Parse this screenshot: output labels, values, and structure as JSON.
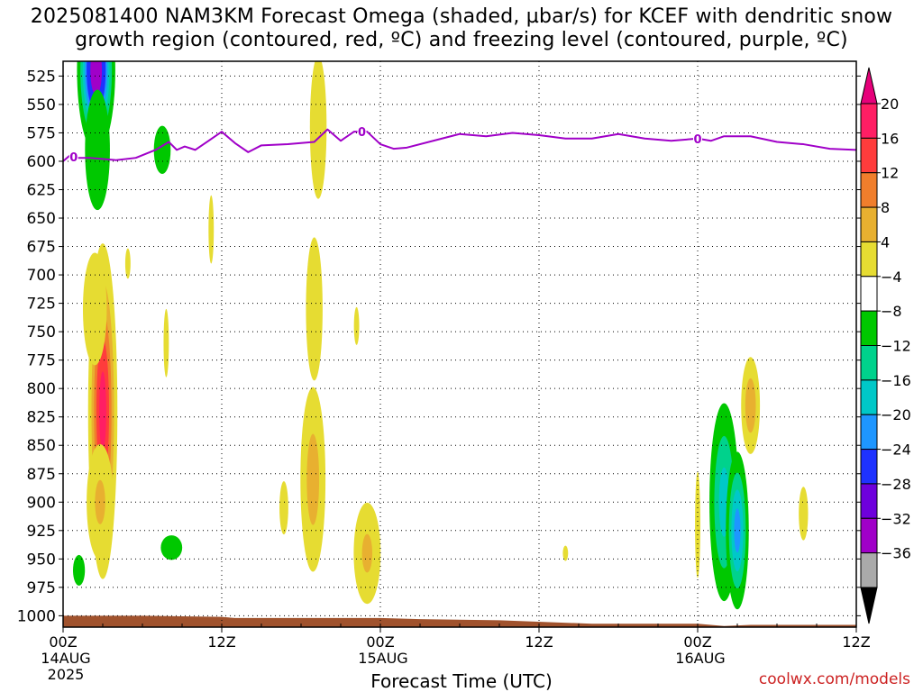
{
  "title": {
    "line1": "2025081400 NAM3KM Forecast Omega (shaded, µbar/s) for KCEF with dendritic snow",
    "line2": "growth region (contoured, red, ºC) and freezing level (contoured, purple, ºC)"
  },
  "credit": "coolwx.com/models",
  "chart_data": {
    "type": "heatmap",
    "xlabel": "Forecast Time (UTC)",
    "ylabel": "",
    "x_unit": "hours since 2025-08-14 00Z",
    "xlim": [
      0,
      60
    ],
    "ylim": [
      1010,
      512
    ],
    "y_ticks": [
      525,
      550,
      575,
      600,
      625,
      650,
      675,
      700,
      725,
      750,
      775,
      800,
      825,
      850,
      875,
      900,
      925,
      950,
      975,
      1000
    ],
    "x_ticks": [
      {
        "x": 0,
        "lines": [
          "00Z",
          "14AUG",
          "2025"
        ]
      },
      {
        "x": 12,
        "lines": [
          "12Z"
        ]
      },
      {
        "x": 24,
        "lines": [
          "00Z",
          "15AUG"
        ]
      },
      {
        "x": 36,
        "lines": [
          "12Z"
        ]
      },
      {
        "x": 48,
        "lines": [
          "00Z",
          "16AUG"
        ]
      },
      {
        "x": 60,
        "lines": [
          "12Z"
        ]
      }
    ],
    "colorbar": {
      "labels": [
        "20",
        "16",
        "12",
        "8",
        "4",
        "-4",
        "-8",
        "-12",
        "-16",
        "-20",
        "-24",
        "-28",
        "-32",
        "-36"
      ],
      "colors": [
        "#ff1e64",
        "#ff3c3c",
        "#f07e2c",
        "#e8b030",
        "#e6dc32",
        "#ffffff",
        "#00c800",
        "#00d28c",
        "#00c8c8",
        "#1e96ff",
        "#1e32ff",
        "#6e00dc",
        "#a000c8",
        "#aaaaaa"
      ],
      "top_color": "#e6007a",
      "bottom_color": "#000000"
    },
    "omega_levels": [
      {
        "value": 4,
        "color": "#e6dc32"
      },
      {
        "value": 8,
        "color": "#e8b030"
      },
      {
        "value": 12,
        "color": "#f07e2c"
      },
      {
        "value": 16,
        "color": "#ff3c3c"
      },
      {
        "value": 20,
        "color": "#ff1e64"
      },
      {
        "value": -4,
        "color": "#00c800"
      },
      {
        "value": -8,
        "color": "#00d28c"
      },
      {
        "value": -12,
        "color": "#00c8c8"
      },
      {
        "value": -16,
        "color": "#1e96ff"
      },
      {
        "value": -20,
        "color": "#1e32ff"
      },
      {
        "value": -28,
        "color": "#a000c8"
      }
    ],
    "omega_features": [
      {
        "x": 2.5,
        "p": 520,
        "sx": 0.7,
        "sp": 35,
        "amp": -34
      },
      {
        "x": 2.6,
        "p": 590,
        "sx": 0.8,
        "sp": 45,
        "amp": -8
      },
      {
        "x": 7.5,
        "p": 590,
        "sx": 0.6,
        "sp": 20,
        "amp": -7
      },
      {
        "x": 1.2,
        "p": 960,
        "sx": 0.5,
        "sp": 15,
        "amp": -6
      },
      {
        "x": 8.2,
        "p": 940,
        "sx": 0.9,
        "sp": 12,
        "amp": -6
      },
      {
        "x": 3.0,
        "p": 820,
        "sx": 0.6,
        "sp": 80,
        "amp": 22
      },
      {
        "x": 2.4,
        "p": 730,
        "sx": 1.0,
        "sp": 55,
        "amp": 6
      },
      {
        "x": 2.8,
        "p": 900,
        "sx": 0.8,
        "sp": 40,
        "amp": 9
      },
      {
        "x": 4.9,
        "p": 690,
        "sx": 0.3,
        "sp": 20,
        "amp": 5
      },
      {
        "x": 7.8,
        "p": 760,
        "sx": 0.3,
        "sp": 45,
        "amp": 5
      },
      {
        "x": 11.2,
        "p": 660,
        "sx": 0.3,
        "sp": 45,
        "amp": 5
      },
      {
        "x": 19.3,
        "p": 570,
        "sx": 0.7,
        "sp": 70,
        "amp": 6
      },
      {
        "x": 19.0,
        "p": 730,
        "sx": 0.7,
        "sp": 70,
        "amp": 6
      },
      {
        "x": 18.9,
        "p": 880,
        "sx": 0.7,
        "sp": 60,
        "amp": 10
      },
      {
        "x": 16.7,
        "p": 905,
        "sx": 0.5,
        "sp": 35,
        "amp": 5
      },
      {
        "x": 22.2,
        "p": 745,
        "sx": 0.3,
        "sp": 25,
        "amp": 5
      },
      {
        "x": 23.0,
        "p": 945,
        "sx": 0.8,
        "sp": 35,
        "amp": 9
      },
      {
        "x": 38.0,
        "p": 945,
        "sx": 0.3,
        "sp": 10,
        "amp": 5
      },
      {
        "x": 48.0,
        "p": 920,
        "sx": 0.3,
        "sp": 70,
        "amp": 5
      },
      {
        "x": 50.0,
        "p": 900,
        "sx": 0.7,
        "sp": 55,
        "amp": -14
      },
      {
        "x": 51.0,
        "p": 925,
        "sx": 0.5,
        "sp": 40,
        "amp": -18
      },
      {
        "x": 52.0,
        "p": 815,
        "sx": 0.5,
        "sp": 30,
        "amp": 11
      },
      {
        "x": 56.0,
        "p": 910,
        "sx": 0.3,
        "sp": 20,
        "amp": 8
      }
    ],
    "freezing_level": {
      "label": "0",
      "color": "#a000c8",
      "x": [
        0,
        0.5,
        1.0,
        2,
        4,
        5.5,
        7,
        8,
        8.6,
        9.2,
        10,
        11,
        12,
        13,
        14,
        15,
        17,
        19,
        20,
        21,
        22,
        23,
        24,
        25,
        26,
        28,
        30,
        32,
        34,
        36,
        38,
        40,
        42,
        44,
        46,
        48,
        49,
        50,
        52,
        54,
        56,
        58,
        60
      ],
      "p": [
        600,
        595,
        597,
        597,
        599,
        597,
        590,
        583,
        590,
        587,
        590,
        582,
        574,
        584,
        592,
        586,
        585,
        583,
        572,
        582,
        574,
        574,
        585,
        589,
        588,
        582,
        576,
        578,
        575,
        577,
        580,
        580,
        576,
        580,
        582,
        580,
        582,
        578,
        578,
        583,
        585,
        589,
        590
      ]
    },
    "terrain": {
      "color": "#a0522d",
      "x": [
        0,
        6,
        12,
        13,
        24,
        27,
        33,
        40,
        48,
        50,
        52,
        60
      ],
      "p": [
        1000,
        1000,
        1001,
        1002,
        1002,
        1003,
        1004,
        1007,
        1007,
        1009,
        1008,
        1008
      ]
    }
  }
}
